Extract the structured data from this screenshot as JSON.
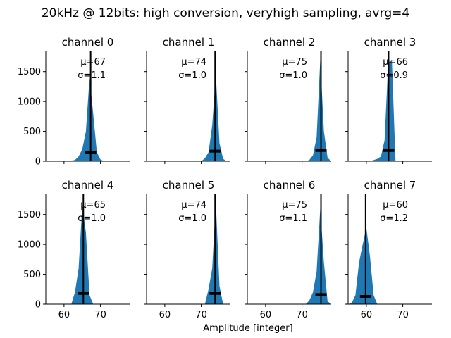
{
  "chart_data": {
    "type": "area",
    "title": "20kHz @ 12bits: high conversion, veryhigh sampling, avrg=4",
    "xlabel": "Amplitude [integer]",
    "ylabel": "",
    "xlim": [
      55,
      78
    ],
    "ylim": [
      0,
      1850
    ],
    "xticks": [
      60,
      70
    ],
    "yticks": [
      0,
      500,
      1000,
      1500
    ],
    "fill_color": "#1f77b4",
    "line_color": "#000000",
    "grid": false,
    "panels": [
      {
        "title": "channel 0",
        "mu": "μ=67",
        "sigma": "σ=1.1",
        "mean": 67.3,
        "bar_height": 150,
        "x": [
          61,
          63,
          64,
          65,
          66,
          67,
          68,
          69,
          70,
          71
        ],
        "y": [
          0,
          20,
          80,
          200,
          500,
          1400,
          800,
          150,
          30,
          0
        ]
      },
      {
        "title": "channel 1",
        "mu": "μ=74",
        "sigma": "σ=1.0",
        "mean": 73.8,
        "bar_height": 170,
        "x": [
          70,
          71,
          72,
          73,
          74,
          75,
          76,
          77
        ],
        "y": [
          0,
          50,
          150,
          600,
          1450,
          300,
          40,
          0
        ]
      },
      {
        "title": "channel 2",
        "mu": "μ=75",
        "sigma": "σ=1.0",
        "mean": 75.2,
        "bar_height": 180,
        "x": [
          71,
          72,
          73,
          74,
          75,
          76,
          77,
          78
        ],
        "y": [
          0,
          20,
          100,
          400,
          1700,
          500,
          60,
          0
        ]
      },
      {
        "title": "channel 3",
        "mu": "μ=66",
        "sigma": "σ=0.9",
        "mean": 66.1,
        "bar_height": 180,
        "x": [
          61,
          63,
          64,
          65,
          66,
          67,
          68
        ],
        "y": [
          0,
          40,
          80,
          350,
          1650,
          1700,
          0
        ]
      },
      {
        "title": "channel 4",
        "mu": "μ=65",
        "sigma": "σ=1.0",
        "mean": 65.3,
        "bar_height": 180,
        "x": [
          62,
          63,
          64,
          65,
          66,
          67,
          68
        ],
        "y": [
          0,
          200,
          600,
          1650,
          1200,
          150,
          0
        ]
      },
      {
        "title": "channel 5",
        "mu": "μ=74",
        "sigma": "σ=1.0",
        "mean": 73.8,
        "bar_height": 180,
        "x": [
          71,
          72,
          73,
          74,
          75,
          76
        ],
        "y": [
          0,
          250,
          600,
          1700,
          300,
          0
        ]
      },
      {
        "title": "channel 6",
        "mu": "μ=75",
        "sigma": "σ=1.1",
        "mean": 75.2,
        "bar_height": 160,
        "x": [
          71,
          72,
          73,
          74,
          75,
          76,
          77,
          78
        ],
        "y": [
          0,
          60,
          200,
          550,
          1600,
          700,
          50,
          0
        ]
      },
      {
        "title": "channel 7",
        "mu": "μ=60",
        "sigma": "σ=1.2",
        "mean": 59.8,
        "bar_height": 130,
        "x": [
          55,
          56,
          57,
          58,
          59,
          60,
          61,
          62,
          63
        ],
        "y": [
          0,
          20,
          150,
          700,
          1000,
          1280,
          800,
          150,
          0
        ]
      }
    ]
  }
}
